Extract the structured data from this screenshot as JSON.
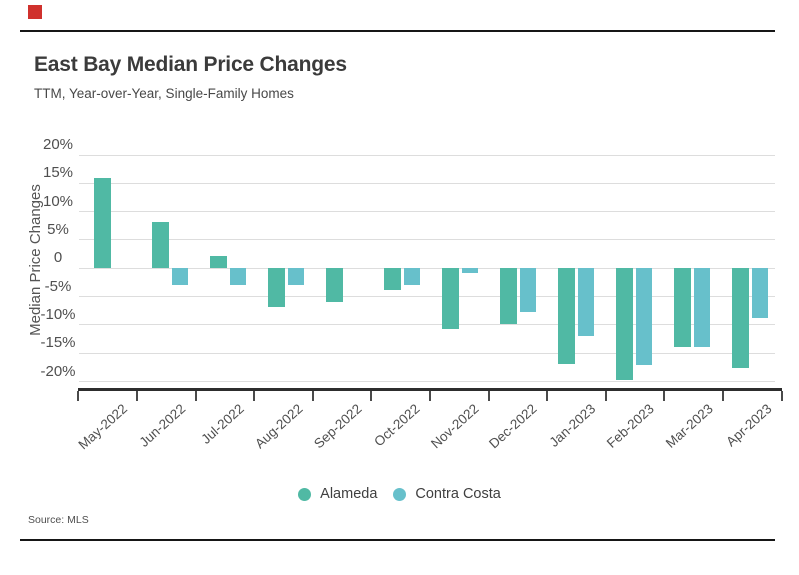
{
  "page": {
    "title": "East Bay Median Price Changes",
    "subtitle": "TTM, Year-over-Year, Single-Family Homes",
    "source": "Source: MLS",
    "brand_color": "#d0312d"
  },
  "chart_data": {
    "type": "bar",
    "title": "East Bay Median Price Changes",
    "subtitle": "TTM, Year-over-Year, Single-Family Homes",
    "xlabel": "",
    "ylabel": "Median Price Changes",
    "unit": "percent",
    "categories": [
      "May-2022",
      "Jun-2022",
      "Jul-2022",
      "Aug-2022",
      "Sep-2022",
      "Oct-2022",
      "Nov-2022",
      "Dec-2022",
      "Jan-2023",
      "Feb-2023",
      "Mar-2023",
      "Apr-2023"
    ],
    "series": [
      {
        "name": "Alameda",
        "color": "#50b9a4",
        "values": [
          16.0,
          8.2,
          2.2,
          -6.9,
          -5.9,
          -3.9,
          -10.8,
          -9.8,
          -16.9,
          -19.8,
          -13.9,
          -17.6
        ]
      },
      {
        "name": "Contra Costa",
        "color": "#67c0cb",
        "values": [
          null,
          -2.9,
          -2.9,
          -2.9,
          null,
          -2.9,
          -0.8,
          -7.8,
          -12.0,
          -17.0,
          -13.9,
          -8.8
        ]
      }
    ],
    "y_ticks": [
      {
        "value": 20,
        "label": "20%"
      },
      {
        "value": 15,
        "label": "15%"
      },
      {
        "value": 10,
        "label": "10%"
      },
      {
        "value": 5,
        "label": "5%"
      },
      {
        "value": 0,
        "label": "0"
      },
      {
        "value": -5,
        "label": "-5%"
      },
      {
        "value": -10,
        "label": "-10%"
      },
      {
        "value": -15,
        "label": "-15%"
      },
      {
        "value": -20,
        "label": "-20%"
      }
    ],
    "ylim": [
      -22,
      22
    ],
    "grid": "horizontal",
    "legend_position": "bottom"
  }
}
